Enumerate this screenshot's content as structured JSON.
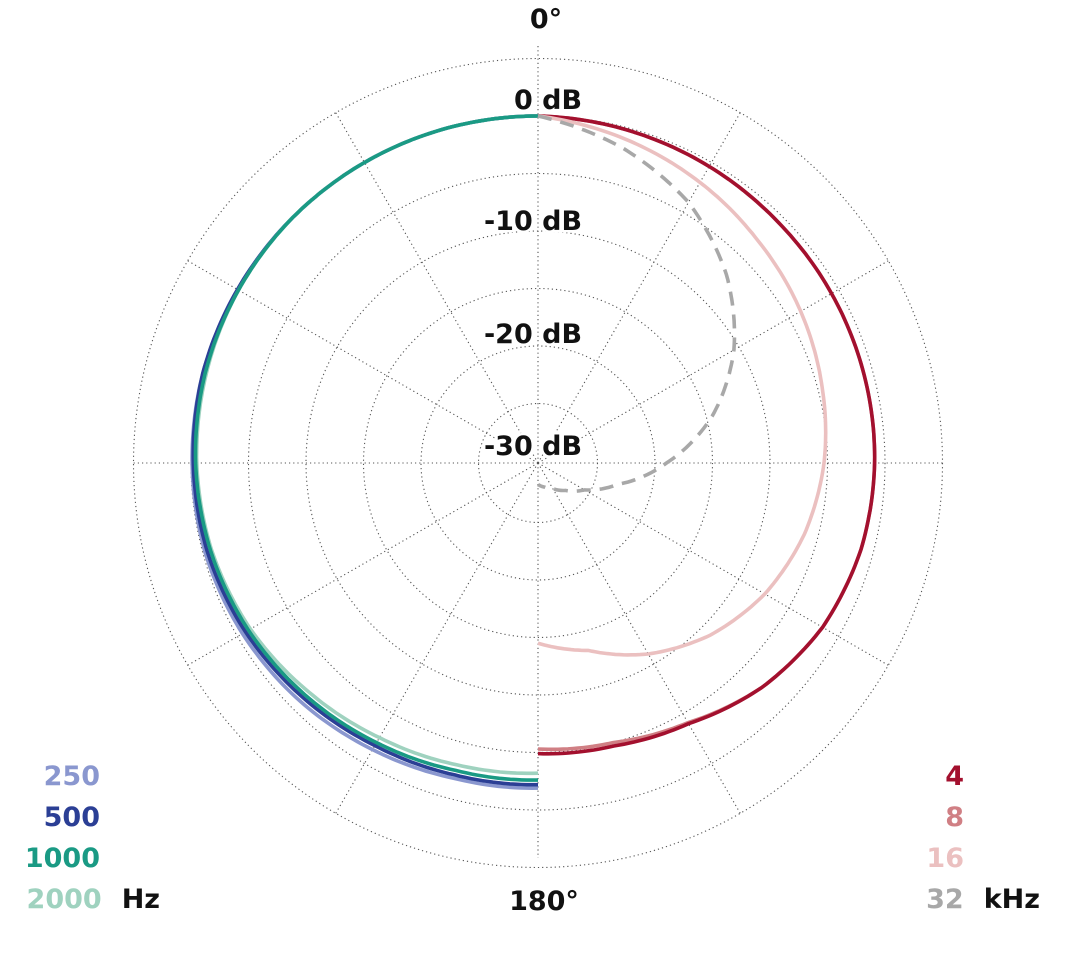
{
  "chart_data": {
    "type": "polar",
    "angle_labels": {
      "top": "0°",
      "bottom": "180°"
    },
    "radial_labels": [
      "0 dB",
      "-10 dB",
      "-20 dB",
      "-30 dB"
    ],
    "r_range_db": [
      -35,
      0
    ],
    "grid": true,
    "angles_deg": [
      0,
      15,
      30,
      45,
      60,
      75,
      90,
      105,
      120,
      135,
      150,
      165,
      180
    ],
    "left_legend": {
      "unit": "Hz",
      "placement": "bottom-left"
    },
    "right_legend": {
      "unit": "kHz",
      "placement": "bottom-right"
    },
    "series": [
      {
        "name": "250",
        "side": "left",
        "color": "#8a97cf",
        "dash": false,
        "db": [
          0,
          0,
          0,
          0,
          0,
          0,
          -0.1,
          -0.2,
          -0.5,
          -0.9,
          -1.4,
          -1.8,
          -1.9
        ]
      },
      {
        "name": "500",
        "side": "left",
        "color": "#2b3f95",
        "dash": false,
        "db": [
          0,
          0,
          0,
          0,
          0,
          0,
          -0.2,
          -0.4,
          -0.8,
          -1.3,
          -1.8,
          -2.1,
          -2.2
        ]
      },
      {
        "name": "1000",
        "side": "left",
        "color": "#1a9a84",
        "dash": false,
        "db": [
          0,
          0,
          0,
          0,
          -0.1,
          -0.2,
          -0.4,
          -0.7,
          -1.1,
          -1.6,
          -2.1,
          -2.5,
          -2.6
        ]
      },
      {
        "name": "2000",
        "side": "left",
        "color": "#9fd2bf",
        "dash": false,
        "db": [
          0,
          0,
          0,
          0,
          -0.1,
          -0.3,
          -0.5,
          -0.8,
          -1.3,
          -2.0,
          -2.6,
          -3.0,
          -3.2
        ]
      },
      {
        "name": "4",
        "side": "right",
        "color": "#a3102e",
        "dash": false,
        "db": [
          0,
          -0.2,
          -0.4,
          -0.6,
          -0.7,
          -0.8,
          -0.9,
          -1.1,
          -1.6,
          -2.6,
          -4.0,
          -4.7,
          -4.9
        ]
      },
      {
        "name": "8",
        "side": "right",
        "color": "#d07f84",
        "dash": false,
        "db": [
          0,
          -0.2,
          -0.4,
          -0.6,
          -0.7,
          -0.8,
          -0.9,
          -1.1,
          -1.6,
          -2.6,
          -4.1,
          -5.0,
          -5.3
        ]
      },
      {
        "name": "16",
        "side": "right",
        "color": "#ebc0c0",
        "dash": false,
        "db": [
          0,
          -1.0,
          -2.0,
          -3.0,
          -3.8,
          -4.6,
          -5.3,
          -6.2,
          -7.4,
          -9.0,
          -11.0,
          -13.3,
          -14.5
        ]
      },
      {
        "name": "32",
        "side": "right",
        "color": "#a8a8a8",
        "dash": true,
        "db": [
          0,
          -1.8,
          -4.0,
          -7.0,
          -10.5,
          -14.5,
          -19.0,
          -23.0,
          -25.5,
          -26.8,
          -27.6,
          -28.0,
          -28.3
        ]
      }
    ]
  }
}
